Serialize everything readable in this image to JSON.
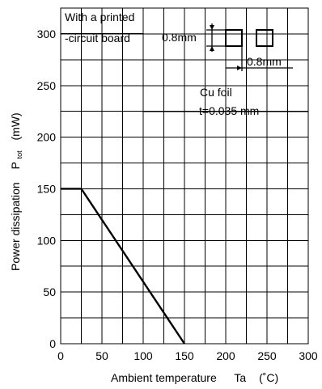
{
  "chart_data": {
    "type": "line",
    "xlabel": "Ambient temperature",
    "xlabel_symbol": "Ta",
    "xlabel_unit": "(˚C)",
    "ylabel": "Power dissipation",
    "ylabel_symbol": "P",
    "ylabel_symbol_sub": "tot",
    "ylabel_unit": "(mW)",
    "xlim": [
      0,
      300
    ],
    "ylim": [
      0,
      325
    ],
    "x_ticks": [
      "0",
      "50",
      "100",
      "150",
      "200",
      "250",
      "300"
    ],
    "y_ticks": [
      "0",
      "50",
      "100",
      "150",
      "200",
      "250",
      "300"
    ],
    "grid": true,
    "series": [
      {
        "x": [
          0,
          25,
          150
        ],
        "y": [
          150,
          150,
          0
        ]
      }
    ],
    "annotations": {
      "board_line1": "With a printed",
      "board_line2": "-circuit board",
      "pad_height": "0.8mm",
      "pad_width": "0.8mm",
      "foil_line1": "Cu foil",
      "foil_line2": "t=0.035 mm"
    }
  }
}
